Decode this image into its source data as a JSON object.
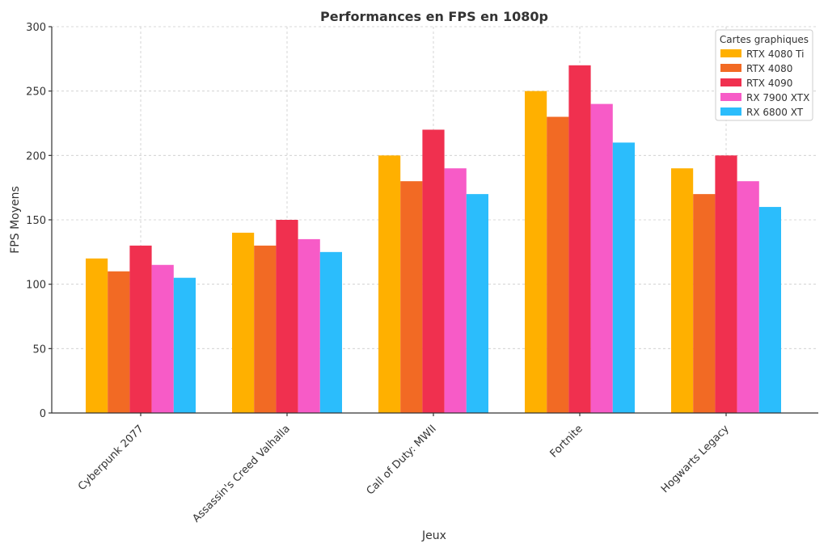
{
  "chart_data": {
    "type": "bar",
    "title": "Performances en FPS en 1080p",
    "xlabel": "Jeux",
    "ylabel": "FPS Moyens",
    "ylim": [
      0,
      300
    ],
    "yticks": [
      0,
      50,
      100,
      150,
      200,
      250,
      300
    ],
    "grid": true,
    "legend": {
      "title": "Cartes graphiques",
      "placement": "top-right"
    },
    "categories": [
      "Cyberpunk 2077",
      "Assassin's Creed Valhalla",
      "Call of Duty: MWII",
      "Fortnite",
      "Hogwarts Legacy"
    ],
    "series": [
      {
        "name": "RTX 4080 Ti",
        "color": "#FFB000",
        "values": [
          120,
          140,
          200,
          250,
          190
        ]
      },
      {
        "name": "RTX 4080",
        "color": "#F26A24",
        "values": [
          110,
          130,
          180,
          230,
          170
        ]
      },
      {
        "name": "RTX 4090",
        "color": "#F0304F",
        "values": [
          130,
          150,
          220,
          270,
          200
        ]
      },
      {
        "name": "RX 7900 XTX",
        "color": "#F75BC7",
        "values": [
          115,
          135,
          190,
          240,
          180
        ]
      },
      {
        "name": "RX 6800 XT",
        "color": "#2BBDFC",
        "values": [
          105,
          125,
          170,
          210,
          160
        ]
      }
    ]
  }
}
